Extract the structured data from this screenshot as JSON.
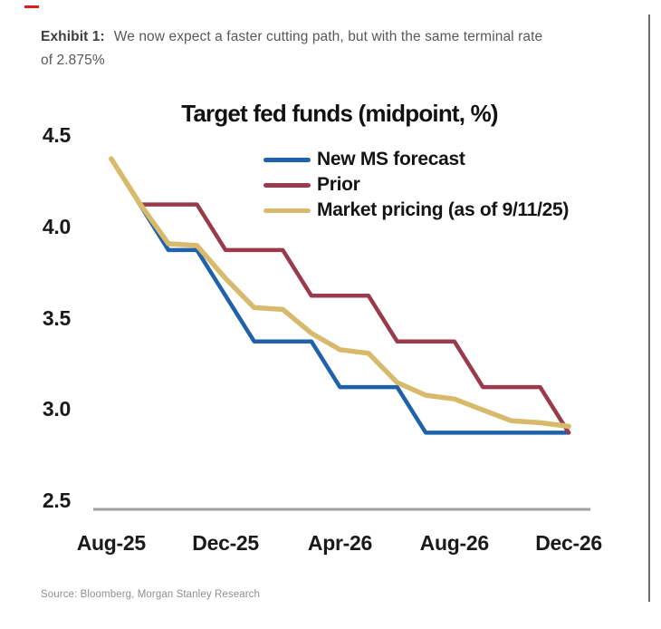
{
  "page": {
    "exhibit_label": "Exhibit 1:",
    "exhibit_text_line1": "We now expect a faster cutting path, but with the same terminal rate",
    "exhibit_text_line2": "of 2.875%",
    "source": "Source: Bloomberg, Morgan Stanley Research",
    "marker_color": "#df1f17"
  },
  "chart_data": {
    "type": "line",
    "title": "Target fed funds (midpoint, %)",
    "x": [
      "Aug-25",
      "Sep-25",
      "Oct-25",
      "Nov-25",
      "Dec-25",
      "Jan-26",
      "Feb-26",
      "Mar-26",
      "Apr-26",
      "May-26",
      "Jun-26",
      "Jul-26",
      "Aug-26",
      "Sep-26",
      "Oct-26",
      "Nov-26",
      "Dec-26"
    ],
    "x_tick_labels": [
      "Aug-25",
      "Dec-25",
      "Apr-26",
      "Aug-26",
      "Dec-26"
    ],
    "x_tick_indices": [
      0,
      4,
      8,
      12,
      16
    ],
    "y_tick_labels": [
      "4.5",
      "4.0",
      "3.5",
      "3.0",
      "2.5"
    ],
    "y_ticks": [
      4.5,
      4.0,
      3.5,
      3.0,
      2.5
    ],
    "ylim": [
      2.5,
      4.5
    ],
    "grid": false,
    "legend_position": "top-center-inside",
    "axis_color": "#9f9f9f",
    "series": [
      {
        "name": "New MS forecast",
        "color": "#1f61aa",
        "width": 4.5,
        "values": [
          4.375,
          4.125,
          3.875,
          3.875,
          3.625,
          3.375,
          3.375,
          3.375,
          3.125,
          3.125,
          3.125,
          2.875,
          2.875,
          2.875,
          2.875,
          2.875,
          2.875
        ]
      },
      {
        "name": "Prior",
        "color": "#9b3a4d",
        "width": 4.5,
        "values": [
          4.375,
          4.125,
          4.125,
          4.125,
          3.875,
          3.875,
          3.875,
          3.625,
          3.625,
          3.625,
          3.375,
          3.375,
          3.375,
          3.125,
          3.125,
          3.125,
          2.875
        ]
      },
      {
        "name": "Market pricing (as of 9/11/25)",
        "color": "#d7ba6b",
        "width": 5.5,
        "values": [
          4.375,
          4.13,
          3.91,
          3.9,
          3.72,
          3.56,
          3.55,
          3.42,
          3.33,
          3.31,
          3.15,
          3.08,
          3.06,
          3.0,
          2.94,
          2.93,
          2.91
        ]
      }
    ]
  }
}
